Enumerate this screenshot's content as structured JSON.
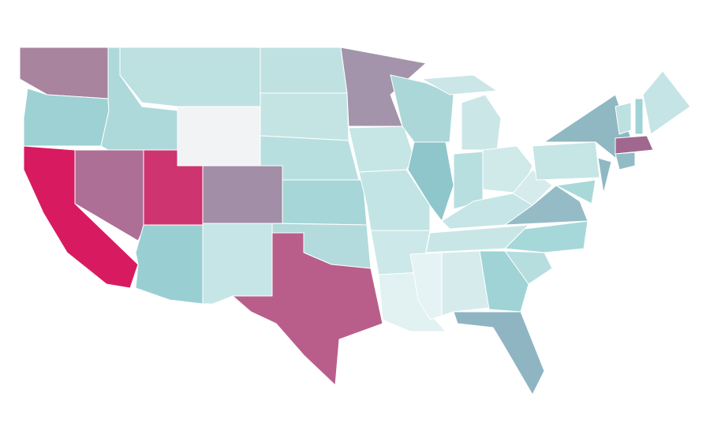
{
  "map": {
    "background": "#ffffff",
    "border_color": "#ffffff",
    "fills": [
      "#a8849f",
      "#9dd1d3",
      "#d81b60",
      "#ad6f96",
      "#aed9da",
      "#bde0e0",
      "#f2f3f5",
      "#ce3470",
      "#a28ea7",
      "#99cfd3",
      "#c6e5e6",
      "#bfe1e1",
      "#c4e4e4",
      "#b8dfdf",
      "#a6d6d7",
      "#b3dadc",
      "#b95e8a",
      "#a394ab",
      "#c6e5e5",
      "#c3e4e5",
      "#cce8e8",
      "#e2f1f1",
      "#acd7d8",
      "#8ec6cb",
      "#cbe6e7",
      "#b8dfe0",
      "#d0e9e9",
      "#c6e5e6",
      "#c9e6e7",
      "#e6f3f4",
      "#d6ecec",
      "#9fd3d5",
      "#8fb5c2",
      "#b7dedf",
      "#a7d8d9",
      "#95bcc6",
      "#d6ecec",
      "#c6e5e5",
      "#8fb8c2",
      "#8fb8c2",
      "#a9d8d9",
      "#bde0e0",
      "#a0d3d5",
      "#c5e4e5",
      "#a0688f",
      "#91bcc5"
    ]
  }
}
